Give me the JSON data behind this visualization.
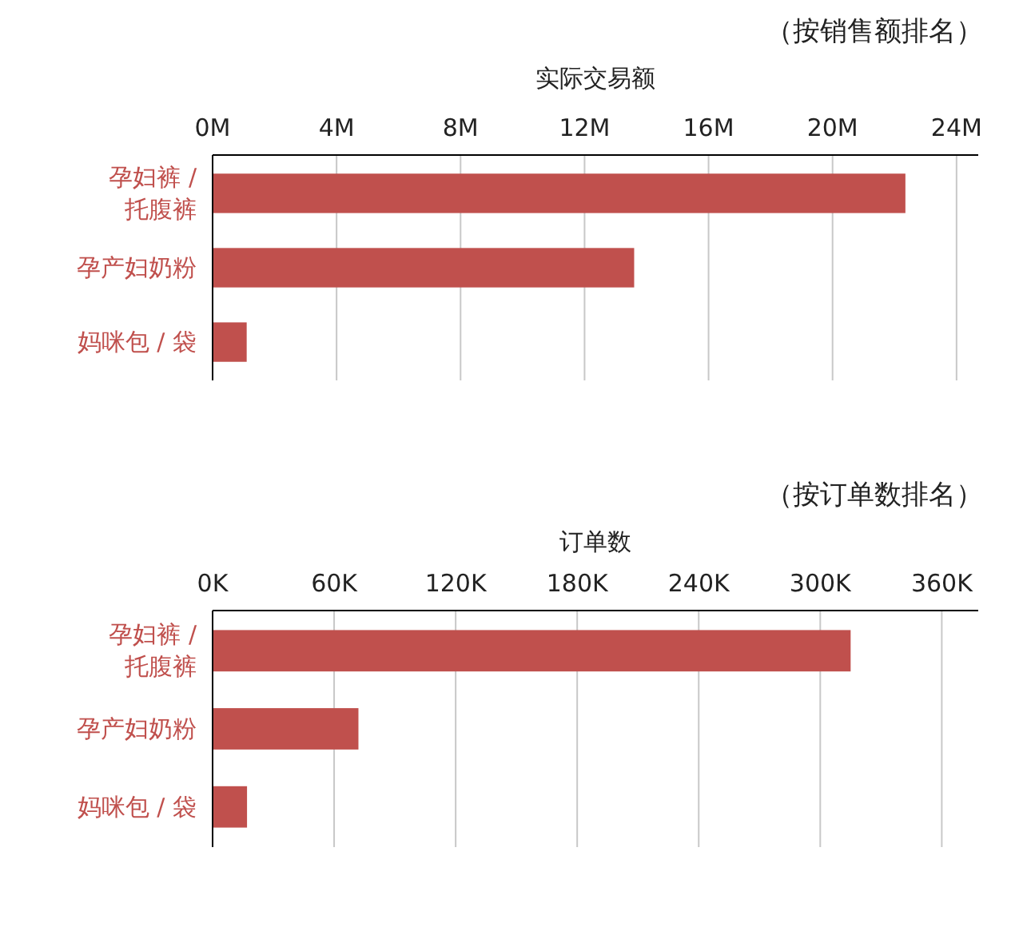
{
  "chart_data": [
    {
      "type": "bar",
      "orientation": "horizontal",
      "title": "（按销售额排名）",
      "xlabel": "实际交易额",
      "categories": [
        "孕妇裤 / 托腹裤",
        "孕产妇奶粉",
        "妈咪包 / 袋"
      ],
      "values": [
        22.35,
        13.6,
        1.1
      ],
      "color": "#c0504d",
      "xlim": [
        0,
        24.7
      ],
      "xticks": [
        {
          "value": 0,
          "label": "0M"
        },
        {
          "value": 4,
          "label": "4M"
        },
        {
          "value": 8,
          "label": "8M"
        },
        {
          "value": 12,
          "label": "12M"
        },
        {
          "value": 16,
          "label": "16M"
        },
        {
          "value": 20,
          "label": "20M"
        },
        {
          "value": 24,
          "label": "24M"
        }
      ],
      "grid": "x"
    },
    {
      "type": "bar",
      "orientation": "horizontal",
      "title": "（按订单数排名）",
      "xlabel": "订单数",
      "categories": [
        "孕妇裤 / 托腹裤",
        "孕产妇奶粉",
        "妈咪包 / 袋"
      ],
      "values": [
        315,
        72,
        17
      ],
      "color": "#c0504d",
      "xlim": [
        0,
        378
      ],
      "xticks": [
        {
          "value": 0,
          "label": "0K"
        },
        {
          "value": 60,
          "label": "60K"
        },
        {
          "value": 120,
          "label": "120K"
        },
        {
          "value": 180,
          "label": "180K"
        },
        {
          "value": 240,
          "label": "240K"
        },
        {
          "value": 300,
          "label": "300K"
        },
        {
          "value": 360,
          "label": "360K"
        }
      ],
      "grid": "x"
    }
  ]
}
